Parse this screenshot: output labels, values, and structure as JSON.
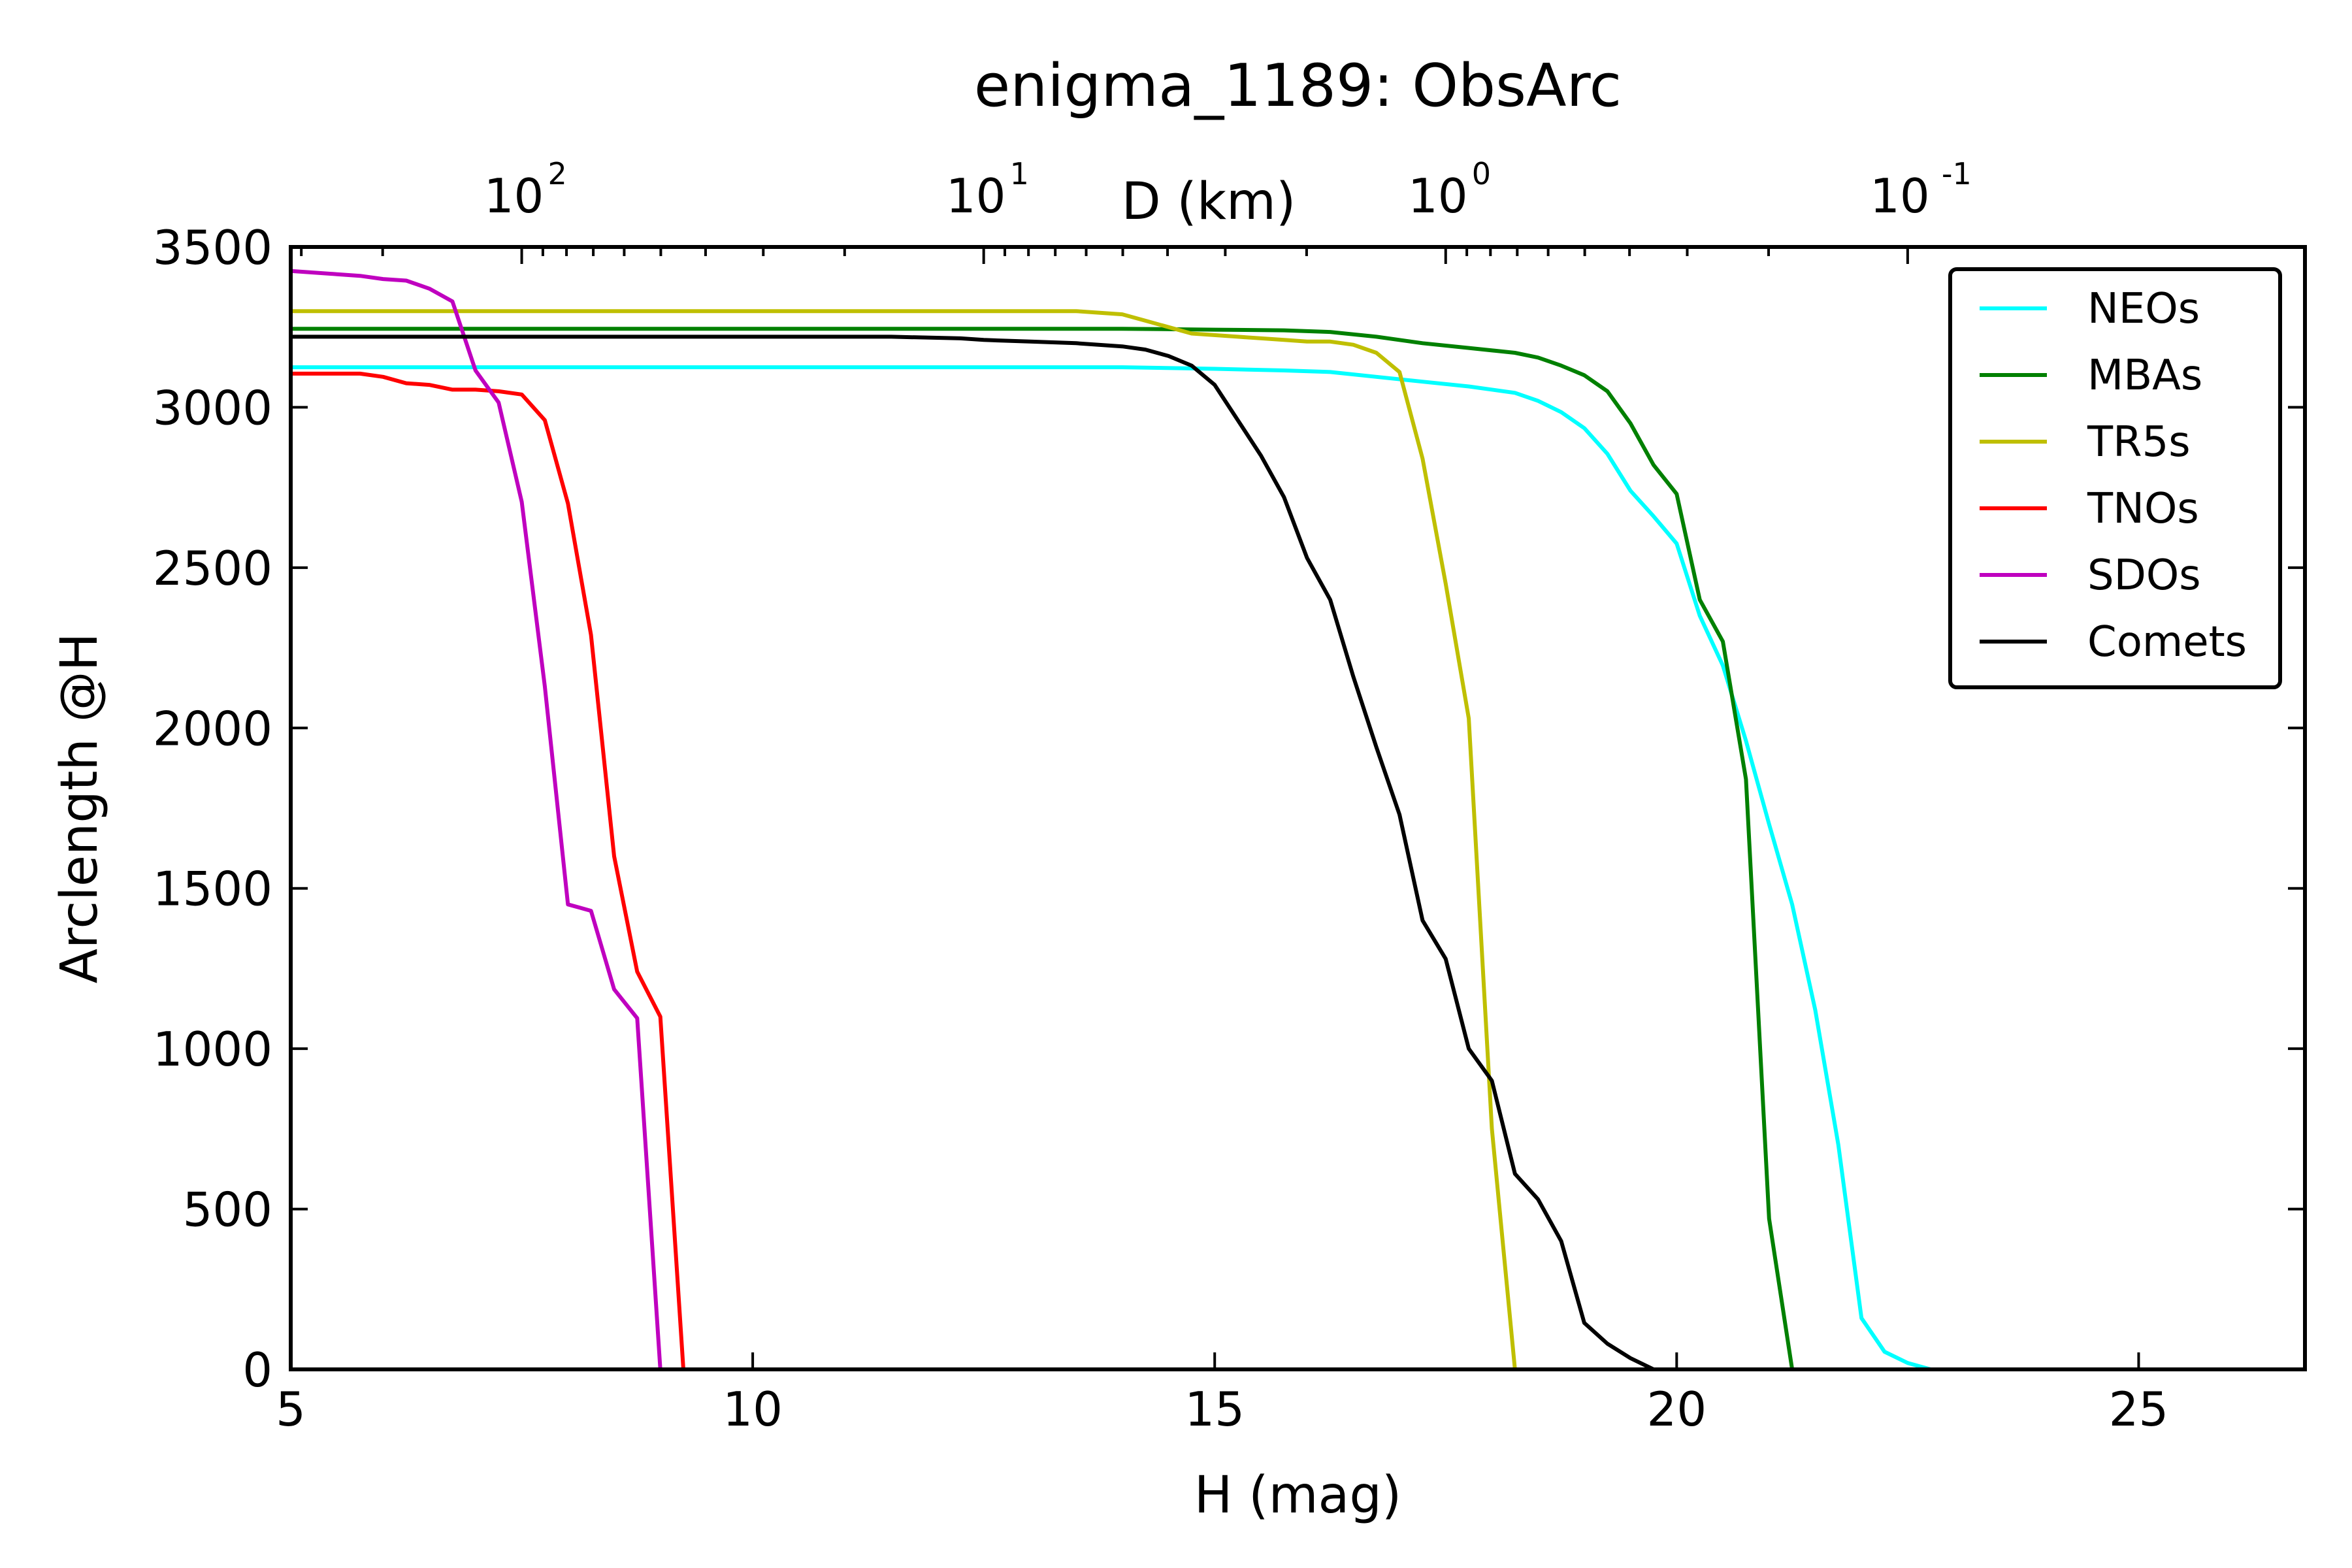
{
  "chart_data": {
    "type": "line",
    "title": "enigma_1189: ObsArc",
    "xlabel": "H (mag)",
    "ylabel": "Arclength @H",
    "top_xlabel": "D (km)",
    "xlim": [
      5,
      26.8
    ],
    "ylim": [
      0,
      3500
    ],
    "x_ticks": [
      "5",
      "10",
      "15",
      "20",
      "25"
    ],
    "y_ticks": [
      "0",
      "500",
      "1000",
      "1500",
      "2000",
      "2500",
      "3000",
      "3500"
    ],
    "top_ticks": [
      {
        "base": "10",
        "exp": "2"
      },
      {
        "base": "10",
        "exp": "1"
      },
      {
        "base": "10",
        "exp": "0"
      },
      {
        "base": "10",
        "exp": "-1"
      }
    ],
    "legend_position": "top-right",
    "grid": false,
    "series": [
      {
        "name": "NEOs",
        "color": "#00ffff",
        "points": [
          [
            5,
            3125
          ],
          [
            8,
            3125
          ],
          [
            12,
            3125
          ],
          [
            14,
            3125
          ],
          [
            15,
            3120
          ],
          [
            15.75,
            3115
          ],
          [
            16.25,
            3110
          ],
          [
            16.75,
            3095
          ],
          [
            17.25,
            3080
          ],
          [
            17.75,
            3065
          ],
          [
            18.25,
            3045
          ],
          [
            18.5,
            3020
          ],
          [
            18.75,
            2985
          ],
          [
            19,
            2935
          ],
          [
            19.25,
            2855
          ],
          [
            19.5,
            2740
          ],
          [
            19.75,
            2660
          ],
          [
            20,
            2575
          ],
          [
            20.25,
            2350
          ],
          [
            20.5,
            2195
          ],
          [
            20.75,
            1960
          ],
          [
            21,
            1700
          ],
          [
            21.25,
            1450
          ],
          [
            21.5,
            1120
          ],
          [
            21.75,
            700
          ],
          [
            22,
            160
          ],
          [
            22.25,
            55
          ],
          [
            22.5,
            20
          ],
          [
            22.75,
            0
          ]
        ]
      },
      {
        "name": "MBAs",
        "color": "#008000",
        "points": [
          [
            5,
            3245
          ],
          [
            10,
            3245
          ],
          [
            14,
            3245
          ],
          [
            15,
            3242
          ],
          [
            15.75,
            3240
          ],
          [
            16.25,
            3235
          ],
          [
            16.75,
            3220
          ],
          [
            17.25,
            3200
          ],
          [
            17.75,
            3185
          ],
          [
            18.25,
            3170
          ],
          [
            18.5,
            3155
          ],
          [
            18.75,
            3130
          ],
          [
            19,
            3100
          ],
          [
            19.25,
            3050
          ],
          [
            19.5,
            2950
          ],
          [
            19.75,
            2820
          ],
          [
            20,
            2730
          ],
          [
            20.25,
            2400
          ],
          [
            20.5,
            2270
          ],
          [
            20.75,
            1840
          ],
          [
            21,
            470
          ],
          [
            21.25,
            0
          ]
        ]
      },
      {
        "name": "TR5s",
        "color": "#bfbf00",
        "points": [
          [
            5,
            3300
          ],
          [
            13.5,
            3300
          ],
          [
            14,
            3290
          ],
          [
            14.25,
            3270
          ],
          [
            14.5,
            3250
          ],
          [
            14.75,
            3230
          ],
          [
            15.25,
            3220
          ],
          [
            15.75,
            3210
          ],
          [
            16,
            3205
          ],
          [
            16.25,
            3205
          ],
          [
            16.5,
            3195
          ],
          [
            16.75,
            3170
          ],
          [
            17,
            3110
          ],
          [
            17.25,
            2840
          ],
          [
            17.5,
            2450
          ],
          [
            17.75,
            2030
          ],
          [
            18,
            750
          ],
          [
            18.25,
            0
          ]
        ]
      },
      {
        "name": "TNOs",
        "color": "#ff0000",
        "points": [
          [
            5,
            3105
          ],
          [
            5.75,
            3105
          ],
          [
            6,
            3095
          ],
          [
            6.25,
            3075
          ],
          [
            6.5,
            3070
          ],
          [
            6.75,
            3055
          ],
          [
            7,
            3055
          ],
          [
            7.25,
            3050
          ],
          [
            7.5,
            3040
          ],
          [
            7.75,
            2960
          ],
          [
            8,
            2700
          ],
          [
            8.25,
            2290
          ],
          [
            8.5,
            1600
          ],
          [
            8.75,
            1240
          ],
          [
            9,
            1100
          ],
          [
            9.25,
            0
          ]
        ]
      },
      {
        "name": "SDOs",
        "color": "#bf00bf",
        "points": [
          [
            5,
            3425
          ],
          [
            5.5,
            3415
          ],
          [
            5.75,
            3410
          ],
          [
            6,
            3400
          ],
          [
            6.25,
            3395
          ],
          [
            6.5,
            3370
          ],
          [
            6.75,
            3330
          ],
          [
            7,
            3115
          ],
          [
            7.25,
            3015
          ],
          [
            7.5,
            2705
          ],
          [
            7.75,
            2130
          ],
          [
            8,
            1450
          ],
          [
            8.25,
            1430
          ],
          [
            8.5,
            1185
          ],
          [
            8.75,
            1095
          ],
          [
            9,
            0
          ]
        ]
      },
      {
        "name": "Comets",
        "color": "#000000",
        "points": [
          [
            5,
            3220
          ],
          [
            11.5,
            3220
          ],
          [
            12.25,
            3215
          ],
          [
            12.5,
            3210
          ],
          [
            13,
            3205
          ],
          [
            13.5,
            3200
          ],
          [
            14,
            3190
          ],
          [
            14.25,
            3180
          ],
          [
            14.5,
            3160
          ],
          [
            14.75,
            3130
          ],
          [
            15,
            3070
          ],
          [
            15.25,
            2960
          ],
          [
            15.5,
            2850
          ],
          [
            15.75,
            2720
          ],
          [
            16,
            2530
          ],
          [
            16.25,
            2400
          ],
          [
            16.5,
            2160
          ],
          [
            16.75,
            1940
          ],
          [
            17,
            1730
          ],
          [
            17.25,
            1400
          ],
          [
            17.5,
            1280
          ],
          [
            17.75,
            1000
          ],
          [
            18,
            900
          ],
          [
            18.25,
            610
          ],
          [
            18.5,
            530
          ],
          [
            18.75,
            400
          ],
          [
            19,
            145
          ],
          [
            19.25,
            80
          ],
          [
            19.5,
            35
          ],
          [
            19.75,
            0
          ]
        ]
      }
    ]
  }
}
